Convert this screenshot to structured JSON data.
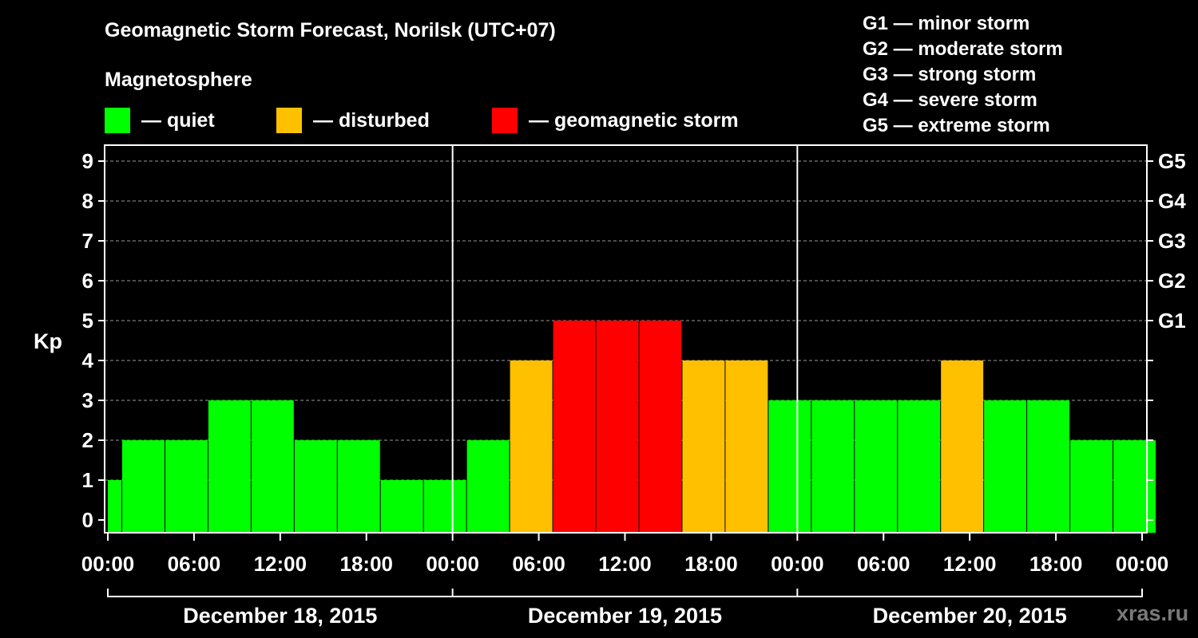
{
  "header": {
    "title": "Geomagnetic Storm Forecast, Norilsk (UTC+07)",
    "subtitle": "Magnetosphere"
  },
  "legend": {
    "quiet": {
      "label": "— quiet",
      "color": "#00ff00"
    },
    "disturbed": {
      "label": "— disturbed",
      "color": "#ffc000"
    },
    "storm": {
      "label": "— geomagnetic storm",
      "color": "#ff0000"
    }
  },
  "storm_levels": [
    "G1 — minor storm",
    "G2 — moderate storm",
    "G3 — strong storm",
    "G4 — severe storm",
    "G5 — extreme storm"
  ],
  "watermark": "xras.ru",
  "chart_data": {
    "type": "bar",
    "title": "Geomagnetic Storm Forecast, Norilsk (UTC+07)",
    "ylabel": "Kp",
    "xlabel": "",
    "ylim": [
      0,
      9
    ],
    "yticks": [
      "0",
      "1",
      "2",
      "3",
      "4",
      "5",
      "6",
      "7",
      "8",
      "9"
    ],
    "right_axis": [
      {
        "kp": 5,
        "label": "G1"
      },
      {
        "kp": 6,
        "label": "G2"
      },
      {
        "kp": 7,
        "label": "G3"
      },
      {
        "kp": 8,
        "label": "G4"
      },
      {
        "kp": 9,
        "label": "G5"
      }
    ],
    "x_hours_range": [
      0,
      72
    ],
    "x_tick_hours": [
      0,
      6,
      12,
      18,
      24,
      30,
      36,
      42,
      48,
      54,
      60,
      66,
      72
    ],
    "x_tick_labels": [
      "00:00",
      "06:00",
      "12:00",
      "18:00",
      "00:00",
      "06:00",
      "12:00",
      "18:00",
      "00:00",
      "06:00",
      "12:00",
      "18:00",
      "00:00"
    ],
    "day_separators_hours": [
      24,
      48
    ],
    "days": [
      {
        "label": "December 18, 2015",
        "start_hour": 0,
        "end_hour": 24
      },
      {
        "label": "December 19, 2015",
        "start_hour": 24,
        "end_hour": 48
      },
      {
        "label": "December 20, 2015",
        "start_hour": 48,
        "end_hour": 72
      }
    ],
    "bar_start_hours": [
      -2,
      1,
      4,
      7,
      10,
      13,
      16,
      19,
      22,
      25,
      28,
      31,
      34,
      37,
      40,
      43,
      46,
      49,
      52,
      55,
      58,
      61,
      64,
      67,
      70
    ],
    "bar_width_hours": 3,
    "values": [
      1,
      2,
      2,
      3,
      3,
      2,
      2,
      1,
      1,
      2,
      4,
      5,
      5,
      5,
      4,
      4,
      3,
      3,
      3,
      3,
      4,
      3,
      3,
      2,
      2
    ],
    "levels": [
      "quiet",
      "quiet",
      "quiet",
      "quiet",
      "quiet",
      "quiet",
      "quiet",
      "quiet",
      "quiet",
      "quiet",
      "disturbed",
      "storm",
      "storm",
      "storm",
      "disturbed",
      "disturbed",
      "quiet",
      "quiet",
      "quiet",
      "quiet",
      "disturbed",
      "quiet",
      "quiet",
      "quiet",
      "quiet"
    ]
  }
}
